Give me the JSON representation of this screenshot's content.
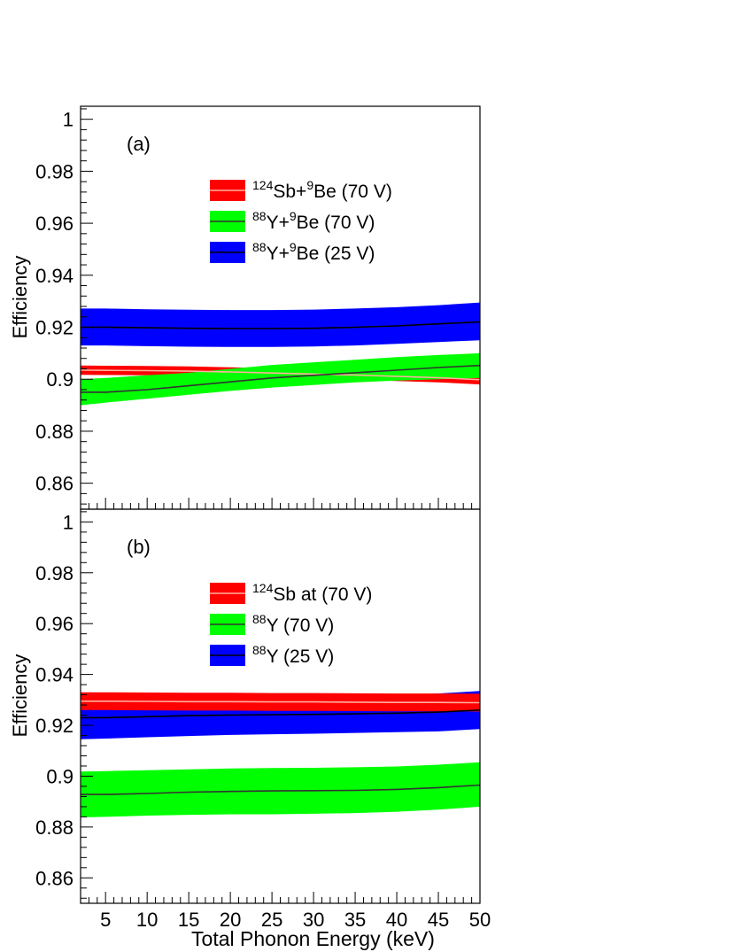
{
  "chart_data": [
    {
      "type": "line",
      "panel_label": "(a)",
      "ylabel": "Efficiency",
      "xlabel": "",
      "xlim": [
        2,
        50
      ],
      "ylim": [
        0.85,
        1.005
      ],
      "yticks": [
        "0.86",
        "0.88",
        "0.9",
        "0.92",
        "0.94",
        "0.96",
        "0.98",
        "1"
      ],
      "legend_position": "top-center",
      "x": [
        2,
        5,
        10,
        15,
        20,
        25,
        30,
        35,
        40,
        45,
        50
      ],
      "series": [
        {
          "name_parts": [
            {
              "sup": "124"
            },
            {
              "t": "Sb+"
            },
            {
              "sup": "9"
            },
            {
              "t": "Be (70 V)"
            }
          ],
          "band_color": "#ff0000",
          "line_color": "#ffb0a0",
          "center": [
            0.9035,
            0.9034,
            0.9033,
            0.9031,
            0.9028,
            0.9024,
            0.902,
            0.9016,
            0.9011,
            0.9006,
            0.8998
          ],
          "lower": [
            0.9017,
            0.9016,
            0.9015,
            0.9013,
            0.901,
            0.9006,
            0.9002,
            0.8998,
            0.8993,
            0.8988,
            0.898
          ],
          "upper": [
            0.9053,
            0.9052,
            0.9051,
            0.9049,
            0.9046,
            0.9042,
            0.9038,
            0.9034,
            0.9029,
            0.9024,
            0.9016
          ]
        },
        {
          "name_parts": [
            {
              "sup": "88"
            },
            {
              "t": "Y+"
            },
            {
              "sup": "9"
            },
            {
              "t": "Be (70 V)"
            }
          ],
          "band_color": "#00ff00",
          "line_color": "#333333",
          "center": [
            0.895,
            0.895,
            0.896,
            0.8975,
            0.899,
            0.9005,
            0.9015,
            0.9025,
            0.9035,
            0.9045,
            0.9053
          ],
          "lower": [
            0.89,
            0.891,
            0.8925,
            0.894,
            0.8955,
            0.8968,
            0.8978,
            0.8988,
            0.8995,
            0.9,
            0.9005
          ],
          "upper": [
            0.9,
            0.9005,
            0.9015,
            0.9025,
            0.904,
            0.9055,
            0.9065,
            0.9075,
            0.9085,
            0.9093,
            0.91
          ]
        },
        {
          "name_parts": [
            {
              "sup": "88"
            },
            {
              "t": "Y+"
            },
            {
              "sup": "9"
            },
            {
              "t": "Be (25 V)"
            }
          ],
          "band_color": "#0000ff",
          "line_color": "#000000",
          "center": [
            0.92,
            0.92,
            0.9198,
            0.9196,
            0.9195,
            0.9195,
            0.9196,
            0.92,
            0.9205,
            0.9213,
            0.922
          ],
          "lower": [
            0.913,
            0.913,
            0.9127,
            0.9125,
            0.9124,
            0.9124,
            0.9126,
            0.913,
            0.9136,
            0.9143,
            0.915
          ],
          "upper": [
            0.9272,
            0.9272,
            0.9269,
            0.9267,
            0.9266,
            0.9266,
            0.9268,
            0.9272,
            0.9277,
            0.9285,
            0.9295
          ]
        }
      ]
    },
    {
      "type": "line",
      "panel_label": "(b)",
      "ylabel": "Efficiency",
      "xlabel": "Total Phonon Energy (keV)",
      "xlim": [
        2,
        50
      ],
      "ylim": [
        0.85,
        1.005
      ],
      "yticks": [
        "0.86",
        "0.88",
        "0.9",
        "0.92",
        "0.94",
        "0.96",
        "0.98",
        "1"
      ],
      "xticks": [
        "5",
        "10",
        "15",
        "20",
        "25",
        "30",
        "35",
        "40",
        "45",
        "50"
      ],
      "legend_position": "top-center",
      "x": [
        2,
        5,
        10,
        15,
        20,
        25,
        30,
        35,
        40,
        45,
        50
      ],
      "series": [
        {
          "name_parts": [
            {
              "sup": "88"
            },
            {
              "t": "Y (25 V)"
            }
          ],
          "band_color": "#0000ff",
          "line_color": "#000000",
          "center": [
            0.923,
            0.923,
            0.9234,
            0.9238,
            0.924,
            0.9242,
            0.9243,
            0.9245,
            0.9248,
            0.9252,
            0.926
          ],
          "lower": [
            0.9145,
            0.9148,
            0.9153,
            0.9158,
            0.9162,
            0.9165,
            0.9167,
            0.917,
            0.9173,
            0.9176,
            0.9185
          ],
          "upper": [
            0.931,
            0.9312,
            0.9315,
            0.9318,
            0.932,
            0.932,
            0.932,
            0.932,
            0.932,
            0.9325,
            0.9335
          ]
        },
        {
          "name_parts": [
            {
              "sup": "124"
            },
            {
              "t": "Sb at (70 V)"
            }
          ],
          "band_color": "#ff0000",
          "line_color": "#ffb0a0",
          "center": [
            0.9295,
            0.9295,
            0.9294,
            0.9293,
            0.9293,
            0.9292,
            0.9292,
            0.9291,
            0.929,
            0.929,
            0.9289
          ],
          "lower": [
            0.926,
            0.926,
            0.9259,
            0.9258,
            0.9258,
            0.9257,
            0.9257,
            0.9256,
            0.9255,
            0.9255,
            0.9254
          ],
          "upper": [
            0.933,
            0.933,
            0.9329,
            0.9328,
            0.9328,
            0.9327,
            0.9327,
            0.9326,
            0.9325,
            0.9325,
            0.9324
          ]
        },
        {
          "name_parts": [
            {
              "sup": "88"
            },
            {
              "t": "Y (70 V)"
            }
          ],
          "band_color": "#00ff00",
          "line_color": "#333333",
          "center": [
            0.8928,
            0.8928,
            0.8932,
            0.8937,
            0.894,
            0.8942,
            0.8943,
            0.8944,
            0.8948,
            0.8955,
            0.8965
          ],
          "lower": [
            0.8838,
            0.884,
            0.8845,
            0.8848,
            0.885,
            0.885,
            0.8852,
            0.8855,
            0.886,
            0.8868,
            0.888
          ],
          "upper": [
            0.9018,
            0.902,
            0.9023,
            0.9027,
            0.903,
            0.9032,
            0.9033,
            0.9035,
            0.9038,
            0.9045,
            0.9055
          ]
        }
      ]
    }
  ]
}
